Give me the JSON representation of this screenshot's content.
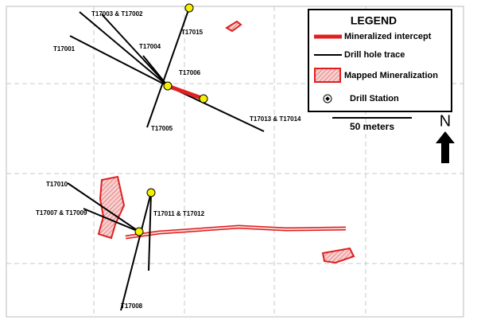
{
  "legend": {
    "title": "LEGEND",
    "items": [
      "Mineralized intercept",
      "Drill hole trace",
      "Mapped Mineralization",
      "Drill Station"
    ]
  },
  "scale_bar": "50 meters",
  "north": "N",
  "drill_labels": [
    "T17003 & T17002",
    "T17015",
    "T17004",
    "T17001",
    "T17006",
    "T17013 & T17014",
    "T17005",
    "T17010",
    "T17007 & T17009",
    "T17011 & T17012",
    "T17008"
  ]
}
